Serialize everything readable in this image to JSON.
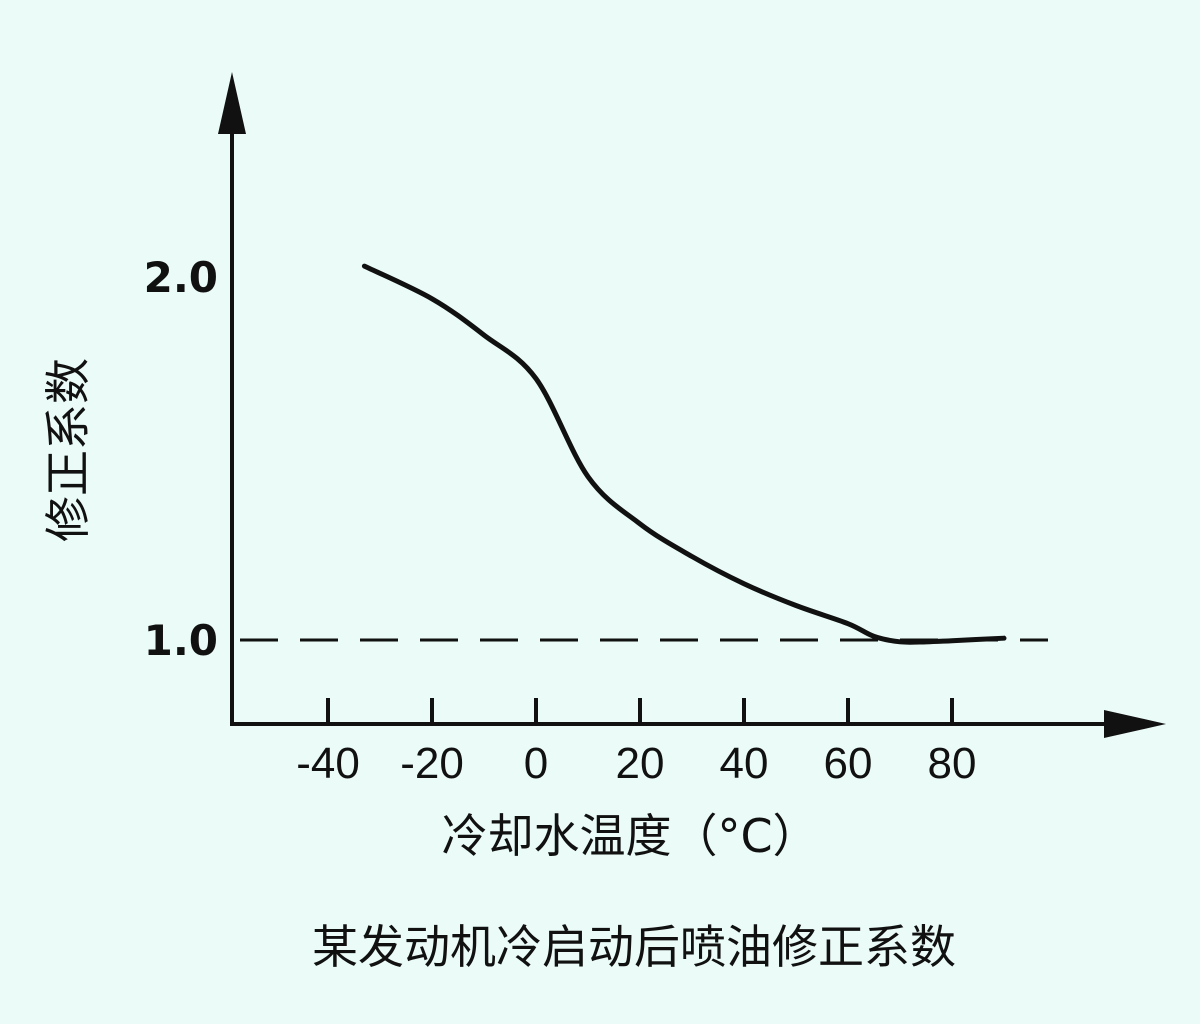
{
  "chart_data": {
    "type": "line",
    "title": "某发动机冷启动后喷油修正系数",
    "xlabel": "冷却水温度（°C）",
    "ylabel": "修正系数",
    "x_ticks": [
      "-40",
      "-20",
      "0",
      "20",
      "40",
      "60",
      "80"
    ],
    "y_ticks": [
      "1.0",
      "2.0"
    ],
    "xlim": [
      -60,
      100
    ],
    "ylim": [
      0.77,
      2.4
    ],
    "reference_line": {
      "y": 1.0,
      "style": "dashed"
    },
    "series": [
      {
        "color": "#111111",
        "x": [
          -33,
          -20,
          -10,
          0,
          10,
          20,
          30,
          40,
          50,
          60,
          65,
          70,
          75,
          80,
          90
        ],
        "y": [
          2.03,
          1.94,
          1.84,
          1.72,
          1.45,
          1.32,
          1.23,
          1.155,
          1.095,
          1.045,
          1.01,
          0.995,
          0.995,
          0.998,
          1.005
        ]
      }
    ],
    "grid": false,
    "legend": "none"
  }
}
